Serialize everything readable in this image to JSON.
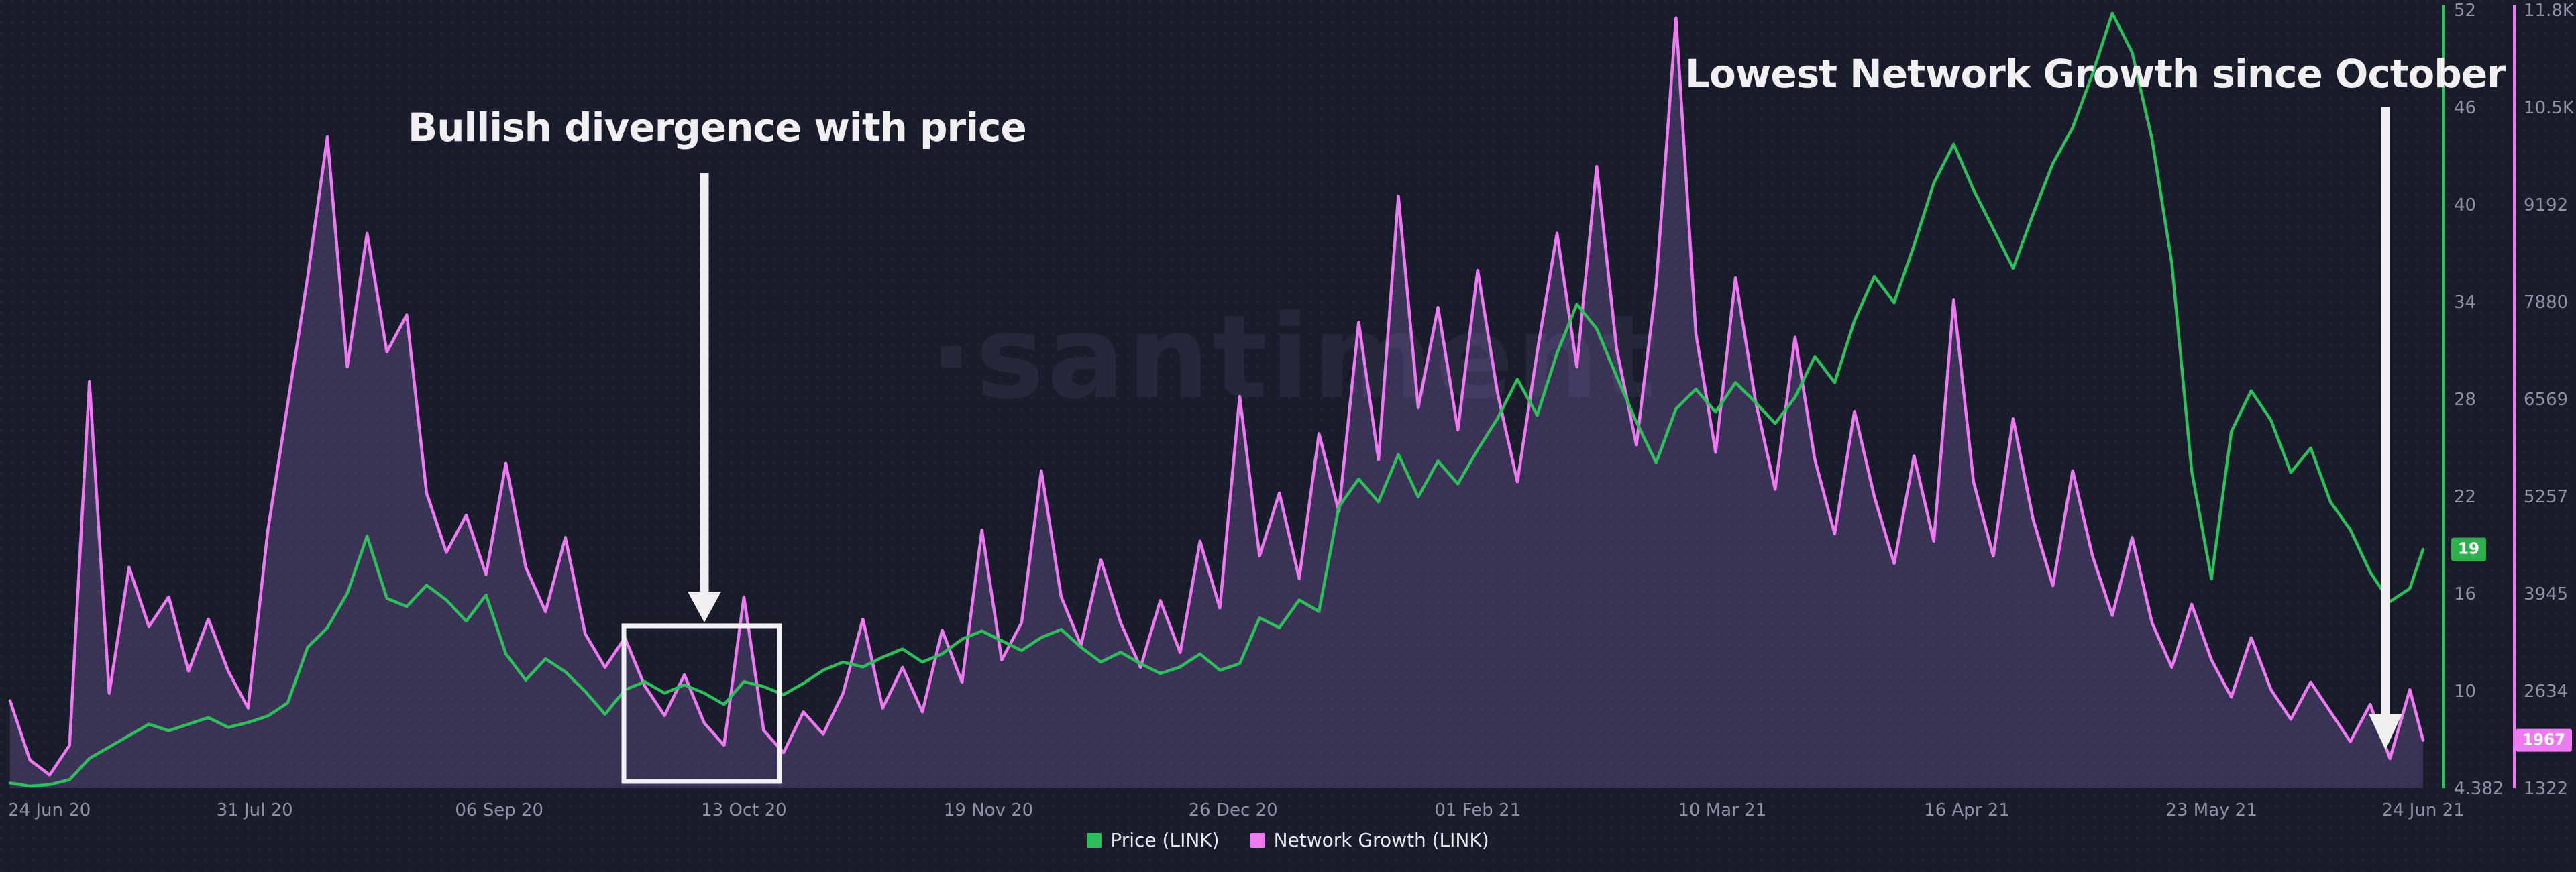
{
  "watermark": "·santiment",
  "annotations": {
    "bullish": {
      "text": "Bullish divergence with price"
    },
    "lowest": {
      "text": "Lowest Network Growth since October"
    }
  },
  "badges": {
    "price": "19",
    "network_growth": "1967"
  },
  "legend": {
    "items": [
      {
        "label": "Price (LINK)",
        "color": "#2fbe5c"
      },
      {
        "label": "Network Growth (LINK)",
        "color": "#ee7af2"
      }
    ]
  },
  "colors": {
    "background": "#191c2b",
    "dot_grid": "#212539",
    "price_line": "#2fbe5c",
    "network_growth_line": "#ee7af2",
    "network_growth_fill": "rgba(158,118,212,0.26)",
    "axis_label": "#8d93a5",
    "annotation_white": "#f2eff2",
    "price_badge_bg": "#2eb04c",
    "network_growth_badge_bg": "#ee7af2"
  },
  "chart_data": {
    "type": "line",
    "title": "",
    "grid": false,
    "legend_position": "bottom-center",
    "x": {
      "unit": "days since 24 Jun 2020",
      "sample_interval_days": 3,
      "last_day": 365,
      "tick_days": [
        0,
        37,
        74,
        111,
        148,
        185,
        222,
        259,
        296,
        333,
        365
      ],
      "tick_labels": [
        "24 Jun 20",
        "31 Jul 20",
        "06 Sep 20",
        "13 Oct 20",
        "19 Nov 20",
        "26 Dec 20",
        "01 Feb 21",
        "10 Mar 21",
        "16 Apr 21",
        "23 May 21",
        "24 Jun 21"
      ]
    },
    "axes": {
      "price": {
        "side": "inner-right",
        "min": 4.382,
        "max": 52,
        "tick_labels": [
          "52",
          "46",
          "40",
          "34",
          "28",
          "22",
          "16",
          "10",
          "4.382"
        ],
        "axis_color": "#2fbe5c",
        "label_color": "#8d93a5"
      },
      "network_growth": {
        "side": "outer-right",
        "min": 1322,
        "max": 11808,
        "tick_labels": [
          "11.8K",
          "10.5K",
          "9192",
          "7880",
          "6569",
          "5257",
          "3945",
          "2634",
          "1322"
        ],
        "axis_color": "#ee7af2",
        "label_color": "#8d93a5"
      }
    },
    "series": [
      {
        "name": "Price (LINK)",
        "axis": "price",
        "color": "#2fbe5c",
        "current_value": 19,
        "values": [
          4.7,
          4.5,
          4.6,
          4.9,
          6.2,
          6.9,
          7.6,
          8.3,
          7.9,
          8.3,
          8.7,
          8.1,
          8.4,
          8.8,
          9.6,
          13.0,
          14.2,
          16.3,
          19.8,
          16.0,
          15.5,
          16.8,
          15.9,
          14.6,
          16.2,
          12.6,
          11.0,
          12.3,
          11.5,
          10.3,
          8.9,
          10.4,
          10.9,
          10.2,
          10.7,
          10.2,
          9.5,
          10.9,
          10.6,
          10.1,
          10.8,
          11.6,
          12.1,
          11.8,
          12.4,
          12.9,
          12.1,
          12.6,
          13.5,
          14.0,
          13.4,
          12.8,
          13.6,
          14.1,
          13.0,
          12.1,
          12.7,
          12.0,
          11.4,
          11.8,
          12.6,
          11.6,
          12.0,
          14.8,
          14.2,
          15.9,
          15.2,
          21.6,
          23.3,
          21.9,
          24.8,
          22.2,
          24.4,
          23.0,
          25.1,
          27.0,
          29.4,
          27.2,
          31.0,
          34.0,
          32.5,
          29.6,
          26.8,
          24.3,
          27.6,
          28.8,
          27.4,
          29.2,
          28.0,
          26.7,
          28.3,
          30.8,
          29.2,
          33.0,
          35.7,
          34.1,
          37.6,
          41.4,
          43.8,
          41.0,
          38.6,
          36.2,
          39.5,
          42.6,
          44.8,
          48.1,
          51.8,
          49.4,
          44.1,
          36.5,
          23.8,
          17.2,
          26.2,
          28.7,
          26.9,
          23.7,
          25.2,
          21.9,
          20.2,
          17.6,
          15.8,
          16.6,
          19.0
        ]
      },
      {
        "name": "Network Growth (LINK)",
        "axis": "network_growth",
        "color": "#ee7af2",
        "fill": "rgba(158,118,212,0.26)",
        "current_value": 1967,
        "values": [
          2500,
          1700,
          1500,
          1900,
          6800,
          2600,
          4300,
          3500,
          3900,
          2900,
          3600,
          2900,
          2400,
          4800,
          6500,
          8200,
          10100,
          7000,
          8800,
          7200,
          7700,
          5300,
          4500,
          5000,
          4200,
          5700,
          4300,
          3700,
          4700,
          3400,
          2950,
          3350,
          2700,
          2300,
          2850,
          2200,
          1900,
          3900,
          2100,
          1800,
          2350,
          2050,
          2600,
          3600,
          2400,
          2950,
          2350,
          3450,
          2750,
          4800,
          3050,
          3550,
          5600,
          3900,
          3250,
          4400,
          3550,
          2950,
          3850,
          3150,
          4650,
          3750,
          6600,
          4450,
          5300,
          4150,
          6100,
          5050,
          7600,
          5750,
          9300,
          6450,
          7800,
          6150,
          8300,
          6650,
          5450,
          7200,
          8800,
          7000,
          9700,
          7250,
          5950,
          8100,
          11700,
          7450,
          5850,
          8200,
          6550,
          5350,
          7400,
          5750,
          4750,
          6400,
          5250,
          4350,
          5800,
          4650,
          7900,
          5450,
          4450,
          6300,
          4950,
          4050,
          5600,
          4450,
          3650,
          4700,
          3550,
          2950,
          3800,
          3050,
          2550,
          3350,
          2650,
          2250,
          2750,
          2350,
          1950,
          2450,
          1720,
          2650,
          1967
        ]
      }
    ],
    "highlight_box": {
      "purpose": "bullish divergence region around 13 Oct 20"
    }
  }
}
